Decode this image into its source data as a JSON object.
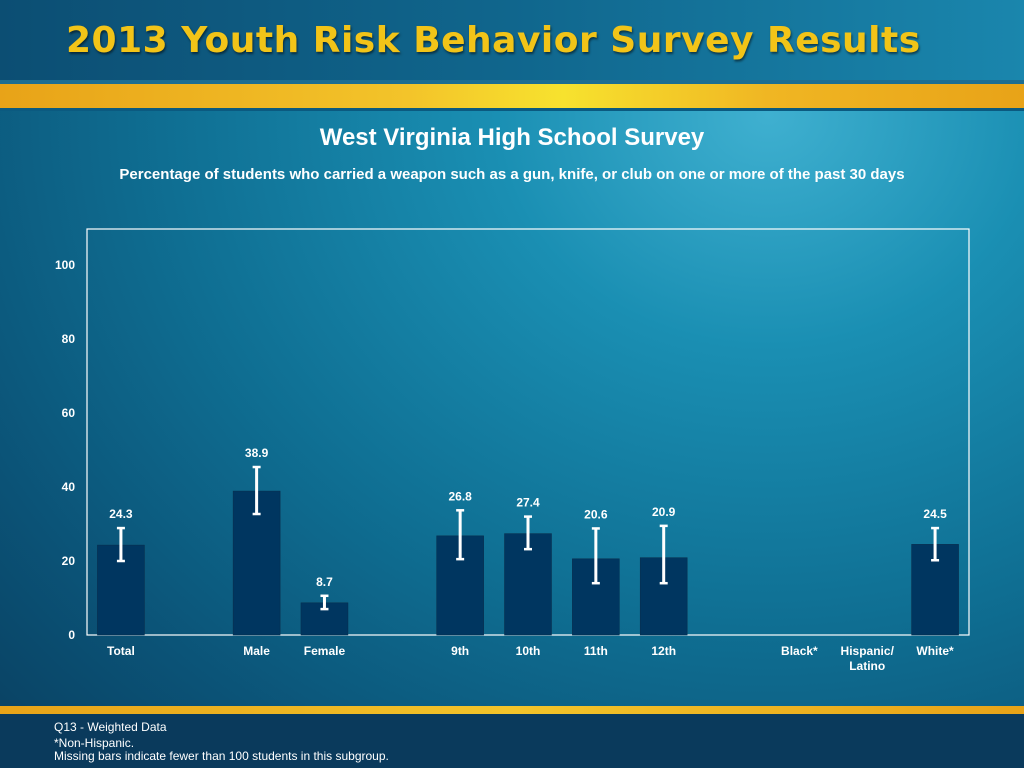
{
  "header": {
    "banner_title": "2013 Youth Risk Behavior Survey Results",
    "survey_title": "West Virginia High School Survey",
    "subtitle": "Percentage of students who carried a weapon such as a gun, knife, or club on one or more of the past 30 days"
  },
  "footer": {
    "line1": "Q13 - Weighted Data",
    "line2": "*Non-Hispanic.",
    "line3": "Missing bars indicate fewer than 100 students in this subgroup."
  },
  "colors": {
    "bar": "#003660",
    "error_bar": "#ffffff",
    "title_gold": "#f2c418"
  },
  "chart_data": {
    "type": "bar",
    "categories": [
      "Total",
      "",
      "Male",
      "Female",
      "",
      "9th",
      "10th",
      "11th",
      "12th",
      "",
      "Black*",
      "Hispanic/\nLatino",
      "White*"
    ],
    "values": [
      24.3,
      null,
      38.9,
      8.7,
      null,
      26.8,
      27.4,
      20.6,
      20.9,
      null,
      null,
      null,
      24.5
    ],
    "value_labels": [
      "24.3",
      "",
      "38.9",
      "8.7",
      "",
      "26.8",
      "27.4",
      "20.6",
      "20.9",
      "",
      "",
      "",
      "24.5"
    ],
    "error_low": [
      20.0,
      null,
      32.7,
      7.0,
      null,
      20.5,
      23.2,
      14.0,
      14.0,
      null,
      null,
      null,
      20.2
    ],
    "error_high": [
      28.9,
      null,
      45.4,
      10.6,
      null,
      33.7,
      32.0,
      28.8,
      29.5,
      null,
      null,
      null,
      28.9
    ],
    "ylim": [
      0,
      110
    ],
    "yticks": [
      0,
      20,
      40,
      60,
      80,
      100
    ],
    "xlabel": "",
    "ylabel": "",
    "grid": false
  }
}
